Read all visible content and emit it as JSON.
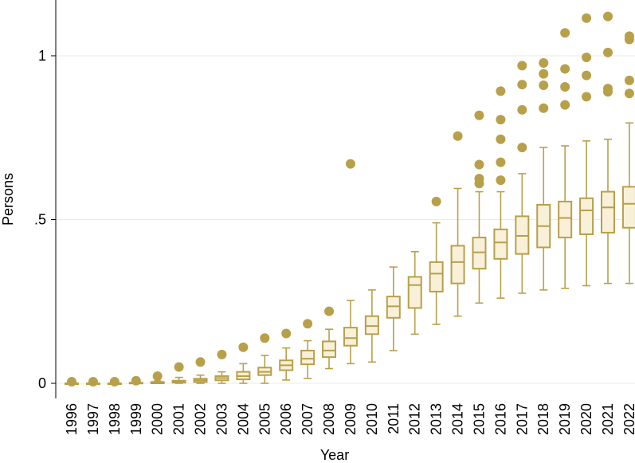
{
  "chart_data": {
    "type": "box",
    "title": "",
    "xlabel": "Year",
    "ylabel": "Persons",
    "ylim": [
      -0.04,
      1.17
    ],
    "yticks": [
      {
        "value": 0,
        "label": "0"
      },
      {
        "value": 0.5,
        "label": ".5"
      },
      {
        "value": 1,
        "label": "1"
      }
    ],
    "grid": true,
    "colors": {
      "box_fill": "#f8f0d8",
      "stroke": "#b8a04a",
      "grid": "#e6ecee"
    },
    "categories": [
      "1996",
      "1997",
      "1998",
      "1999",
      "2000",
      "2001",
      "2002",
      "2003",
      "2004",
      "2005",
      "2006",
      "2007",
      "2008",
      "2009",
      "2010",
      "2011",
      "2012",
      "2013",
      "2014",
      "2015",
      "2016",
      "2017",
      "2018",
      "2019",
      "2020",
      "2021",
      "2022"
    ],
    "boxes": [
      {
        "year": "1996",
        "lw": 0,
        "q1": 0,
        "med": 0,
        "q3": 0,
        "uw": 0,
        "outliers": [
          0.005
        ]
      },
      {
        "year": "1997",
        "lw": 0,
        "q1": 0,
        "med": 0,
        "q3": 0,
        "uw": 0,
        "outliers": [
          0.005
        ]
      },
      {
        "year": "1998",
        "lw": 0,
        "q1": 0,
        "med": 0,
        "q3": 0,
        "uw": 0,
        "outliers": [
          0.005
        ]
      },
      {
        "year": "1999",
        "lw": 0,
        "q1": 0,
        "med": 0,
        "q3": 0.002,
        "uw": 0.003,
        "outliers": [
          0.008
        ]
      },
      {
        "year": "2000",
        "lw": 0,
        "q1": 0,
        "med": 0.002,
        "q3": 0.004,
        "uw": 0.007,
        "outliers": [
          0.022
        ]
      },
      {
        "year": "2001",
        "lw": 0,
        "q1": 0.002,
        "med": 0.005,
        "q3": 0.008,
        "uw": 0.018,
        "outliers": [
          0.05
        ]
      },
      {
        "year": "2002",
        "lw": 0,
        "q1": 0.004,
        "med": 0.009,
        "q3": 0.014,
        "uw": 0.025,
        "outliers": [
          0.065
        ]
      },
      {
        "year": "2003",
        "lw": 0,
        "q1": 0.009,
        "med": 0.016,
        "q3": 0.022,
        "uw": 0.035,
        "outliers": [
          0.088
        ]
      },
      {
        "year": "2004",
        "lw": 0,
        "q1": 0.012,
        "med": 0.022,
        "q3": 0.035,
        "uw": 0.06,
        "outliers": [
          0.11
        ]
      },
      {
        "year": "2005",
        "lw": 0,
        "q1": 0.025,
        "med": 0.035,
        "q3": 0.048,
        "uw": 0.085,
        "outliers": [
          0.138
        ]
      },
      {
        "year": "2006",
        "lw": 0.01,
        "q1": 0.04,
        "med": 0.055,
        "q3": 0.07,
        "uw": 0.108,
        "outliers": [
          0.152
        ]
      },
      {
        "year": "2007",
        "lw": 0.015,
        "q1": 0.058,
        "med": 0.075,
        "q3": 0.1,
        "uw": 0.13,
        "outliers": [
          0.182
        ]
      },
      {
        "year": "2008",
        "lw": 0.045,
        "q1": 0.08,
        "med": 0.1,
        "q3": 0.128,
        "uw": 0.165,
        "outliers": [
          0.22
        ]
      },
      {
        "year": "2009",
        "lw": 0.06,
        "q1": 0.115,
        "med": 0.138,
        "q3": 0.17,
        "uw": 0.253,
        "outliers": [
          0.67
        ]
      },
      {
        "year": "2010",
        "lw": 0.065,
        "q1": 0.15,
        "med": 0.175,
        "q3": 0.205,
        "uw": 0.285,
        "outliers": []
      },
      {
        "year": "2011",
        "lw": 0.1,
        "q1": 0.2,
        "med": 0.235,
        "q3": 0.265,
        "uw": 0.355,
        "outliers": []
      },
      {
        "year": "2012",
        "lw": 0.15,
        "q1": 0.23,
        "med": 0.3,
        "q3": 0.325,
        "uw": 0.402,
        "outliers": []
      },
      {
        "year": "2013",
        "lw": 0.18,
        "q1": 0.28,
        "med": 0.335,
        "q3": 0.37,
        "uw": 0.49,
        "outliers": [
          0.555
        ]
      },
      {
        "year": "2014",
        "lw": 0.205,
        "q1": 0.305,
        "med": 0.37,
        "q3": 0.42,
        "uw": 0.595,
        "outliers": [
          0.755
        ]
      },
      {
        "year": "2015",
        "lw": 0.245,
        "q1": 0.35,
        "med": 0.4,
        "q3": 0.445,
        "uw": 0.585,
        "outliers": [
          0.61,
          0.625,
          0.668,
          0.818
        ]
      },
      {
        "year": "2016",
        "lw": 0.26,
        "q1": 0.38,
        "med": 0.43,
        "q3": 0.47,
        "uw": 0.585,
        "outliers": [
          0.62,
          0.675,
          0.745,
          0.805,
          0.892
        ]
      },
      {
        "year": "2017",
        "lw": 0.275,
        "q1": 0.395,
        "med": 0.45,
        "q3": 0.51,
        "uw": 0.64,
        "outliers": [
          0.72,
          0.835,
          0.912,
          0.97
        ]
      },
      {
        "year": "2018",
        "lw": 0.285,
        "q1": 0.415,
        "med": 0.48,
        "q3": 0.545,
        "uw": 0.72,
        "outliers": [
          0.84,
          0.91,
          0.945,
          0.978
        ]
      },
      {
        "year": "2019",
        "lw": 0.29,
        "q1": 0.445,
        "med": 0.505,
        "q3": 0.555,
        "uw": 0.725,
        "outliers": [
          0.85,
          0.905,
          0.96,
          1.07
        ]
      },
      {
        "year": "2020",
        "lw": 0.298,
        "q1": 0.455,
        "med": 0.528,
        "q3": 0.565,
        "uw": 0.74,
        "outliers": [
          0.875,
          0.94,
          0.995,
          1.115
        ]
      },
      {
        "year": "2021",
        "lw": 0.305,
        "q1": 0.46,
        "med": 0.537,
        "q3": 0.585,
        "uw": 0.745,
        "outliers": [
          0.89,
          0.9,
          1.01,
          1.12
        ]
      },
      {
        "year": "2022",
        "lw": 0.305,
        "q1": 0.475,
        "med": 0.548,
        "q3": 0.6,
        "uw": 0.795,
        "outliers": [
          0.885,
          0.925,
          1.05,
          1.06
        ]
      }
    ]
  }
}
